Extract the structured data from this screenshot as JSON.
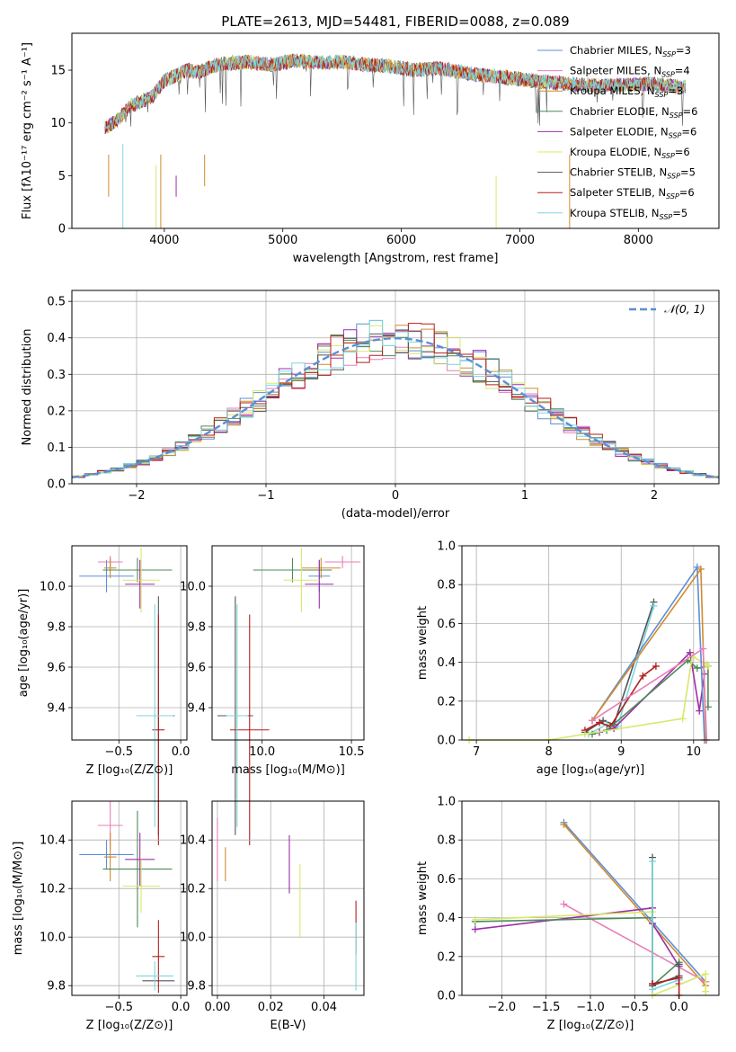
{
  "chart_data": [
    {
      "type": "line",
      "title": "PLATE=2613, MJD=54481, FIBERID=0088, z=0.089",
      "xlabel": "wavelength [Angstrom, rest frame]",
      "ylabel": "Flux [fλ10⁻¹⁷ erg cm⁻² s⁻¹ A⁻¹]",
      "xlim": [
        3220,
        8680
      ],
      "ylim": [
        0,
        18.5
      ],
      "xticks": [
        4000,
        5000,
        6000,
        7000,
        8000
      ],
      "yticks": [
        0,
        5,
        10,
        15
      ],
      "legend_position": "upper right",
      "spectrum_envelope": {
        "x": [
          3500,
          3600,
          3700,
          3800,
          3900,
          4000,
          4100,
          4200,
          4300,
          4400,
          4500,
          4700,
          4900,
          5100,
          5300,
          5500,
          5700,
          5900,
          6100,
          6300,
          6500,
          6700,
          6900,
          7100,
          7300,
          7500,
          7700,
          7900,
          8100,
          8300,
          8400
        ],
        "y": [
          9.5,
          10.2,
          11.5,
          12.0,
          12.5,
          14.0,
          14.5,
          15.0,
          14.8,
          15.4,
          15.6,
          15.8,
          15.5,
          15.9,
          15.7,
          15.8,
          15.5,
          15.4,
          15.0,
          15.2,
          14.8,
          14.5,
          14.3,
          14.0,
          13.8,
          13.6,
          13.5,
          13.6,
          13.7,
          13.5,
          13.4
        ]
      },
      "series": [
        {
          "name": "Chabrier MILES, N_SSP=3",
          "color": "#5b8fd6"
        },
        {
          "name": "Salpeter MILES, N_SSP=4",
          "color": "#e87eb8"
        },
        {
          "name": "Kroupa MILES, N_SSP=3",
          "color": "#d38a2c"
        },
        {
          "name": "Chabrier ELODIE, N_SSP=6",
          "color": "#4f8a56"
        },
        {
          "name": "Salpeter ELODIE, N_SSP=6",
          "color": "#9c2fa8"
        },
        {
          "name": "Kroupa ELODIE, N_SSP=6",
          "color": "#d8e86a"
        },
        {
          "name": "Chabrier STELIB, N_SSP=5",
          "color": "#555555"
        },
        {
          "name": "Salpeter STELIB, N_SSP=6",
          "color": "#b21e1e"
        },
        {
          "name": "Kroupa STELIB, N_SSP=5",
          "color": "#7dd6df"
        }
      ]
    },
    {
      "type": "histogram",
      "xlabel": "(data-model)/error",
      "ylabel": "Normed distribution",
      "xlim": [
        -2.5,
        2.5
      ],
      "ylim": [
        0,
        0.53
      ],
      "xticks": [
        -2,
        -1,
        0,
        1,
        2
      ],
      "yticks": [
        0.0,
        0.1,
        0.2,
        0.3,
        0.4,
        0.5
      ],
      "grid": true,
      "legend_position": "upper right",
      "reference_curve": {
        "name": "𝒩(0, 1)",
        "color": "#5b8fd6"
      },
      "bin_width": 0.1,
      "bin_start": -2.5,
      "series_colors": [
        "#5b8fd6",
        "#e87eb8",
        "#d38a2c",
        "#4f8a56",
        "#9c2fa8",
        "#d8e86a",
        "#555555",
        "#b21e1e",
        "#7dd6df"
      ]
    },
    {
      "type": "scatter",
      "xlabel": "Z [log₁₀(Z/Z⊙)]",
      "ylabel": "age  [log₁₀(age/yr)]",
      "xlim": [
        -0.88,
        0.05
      ],
      "ylim": [
        9.24,
        10.2
      ],
      "xticks": [
        -0.5,
        0.0
      ],
      "yticks": [
        9.4,
        9.6,
        9.8,
        10.0
      ],
      "points": [
        {
          "color": "#5b8fd6",
          "x": -0.6,
          "xerr": 0.22,
          "y": 10.05,
          "yerr": 0.08
        },
        {
          "color": "#e87eb8",
          "x": -0.57,
          "xerr": 0.1,
          "y": 10.12,
          "yerr": 0.03
        },
        {
          "color": "#d38a2c",
          "x": -0.57,
          "xerr": 0.05,
          "y": 10.09,
          "yerr": 0.05
        },
        {
          "color": "#4f8a56",
          "x": -0.35,
          "xerr": 0.28,
          "y": 10.08,
          "yerr": 0.06
        },
        {
          "color": "#9c2fa8",
          "x": -0.33,
          "xerr": 0.12,
          "y": 10.01,
          "yerr": 0.12
        },
        {
          "color": "#d8e86a",
          "x": -0.32,
          "xerr": 0.15,
          "y": 10.03,
          "yerr": 0.16
        },
        {
          "color": "#555555",
          "x": -0.18,
          "xerr": 0.13,
          "y": 9.36,
          "yerr": 0.59
        },
        {
          "color": "#b21e1e",
          "x": -0.18,
          "xerr": 0.05,
          "y": 9.29,
          "yerr": 0.57
        },
        {
          "color": "#7dd6df",
          "x": -0.21,
          "xerr": 0.15,
          "y": 9.36,
          "yerr": 0.55
        }
      ]
    },
    {
      "type": "scatter",
      "xlabel": "mass [log₁₀(M/M⊙)]",
      "xlim": [
        9.72,
        10.57
      ],
      "ylim": [
        9.24,
        10.2
      ],
      "xticks": [
        10.0,
        10.5
      ],
      "yticks": [
        9.4,
        9.6,
        9.8,
        10.0
      ],
      "points": [
        {
          "color": "#5b8fd6",
          "x": 10.32,
          "xerr": 0.06,
          "y": 10.05,
          "yerr": 0.08
        },
        {
          "color": "#e87eb8",
          "x": 10.45,
          "xerr": 0.1,
          "y": 10.12,
          "yerr": 0.03
        },
        {
          "color": "#d38a2c",
          "x": 10.33,
          "xerr": 0.11,
          "y": 10.09,
          "yerr": 0.05
        },
        {
          "color": "#4f8a56",
          "x": 10.17,
          "xerr": 0.22,
          "y": 10.08,
          "yerr": 0.06
        },
        {
          "color": "#9c2fa8",
          "x": 10.32,
          "xerr": 0.08,
          "y": 10.01,
          "yerr": 0.12
        },
        {
          "color": "#d8e86a",
          "x": 10.22,
          "xerr": 0.1,
          "y": 10.03,
          "yerr": 0.16
        },
        {
          "color": "#555555",
          "x": 9.85,
          "xerr": 0.1,
          "y": 9.36,
          "yerr": 0.59
        },
        {
          "color": "#b21e1e",
          "x": 9.93,
          "xerr": 0.11,
          "y": 9.29,
          "yerr": 0.57
        },
        {
          "color": "#7dd6df",
          "x": 9.86,
          "xerr": 0.06,
          "y": 9.36,
          "yerr": 0.55
        }
      ]
    },
    {
      "type": "line",
      "xlabel": "age  [log₁₀(age/yr)]",
      "ylabel": "mass weight",
      "xlim": [
        6.8,
        10.35
      ],
      "ylim": [
        0,
        1.0
      ],
      "xticks": [
        7,
        8,
        9,
        10
      ],
      "yticks": [
        0.0,
        0.2,
        0.4,
        0.6,
        0.8,
        1.0
      ],
      "series": [
        {
          "color": "#555555",
          "x": [
            8.5,
            8.75,
            8.9,
            9.45
          ],
          "y": [
            0.04,
            0.1,
            0.08,
            0.71
          ]
        },
        {
          "color": "#7dd6df",
          "x": [
            8.55,
            8.8,
            8.95,
            9.45
          ],
          "y": [
            0.03,
            0.08,
            0.07,
            0.69
          ]
        },
        {
          "color": "#b21e1e",
          "x": [
            8.5,
            8.7,
            8.85,
            9.3,
            9.48
          ],
          "y": [
            0.05,
            0.09,
            0.07,
            0.33,
            0.38
          ]
        },
        {
          "color": "#9c2fa8",
          "x": [
            8.7,
            8.9,
            9.95,
            10.08,
            10.15
          ],
          "y": [
            0.04,
            0.06,
            0.45,
            0.15,
            0.34
          ]
        },
        {
          "color": "#4f8a56",
          "x": [
            8.6,
            8.8,
            9.92,
            10.05,
            10.2,
            10.2
          ],
          "y": [
            0.03,
            0.05,
            0.41,
            0.37,
            0.38,
            0.17
          ]
        },
        {
          "color": "#d8e86a",
          "x": [
            6.9,
            8.0,
            8.5,
            9.85,
            9.98,
            10.18,
            10.2
          ],
          "y": [
            0.0,
            0.0,
            0.03,
            0.11,
            0.43,
            0.39,
            0.38
          ]
        },
        {
          "color": "#5b8fd6",
          "x": [
            8.6,
            10.05,
            10.15
          ],
          "y": [
            0.1,
            0.89,
            0.0
          ]
        },
        {
          "color": "#d38a2c",
          "x": [
            8.6,
            10.1,
            10.17
          ],
          "y": [
            0.1,
            0.88,
            0.0
          ]
        },
        {
          "color": "#e87eb8",
          "x": [
            8.6,
            10.13,
            10.18
          ],
          "y": [
            0.1,
            0.47,
            0.0
          ]
        }
      ]
    },
    {
      "type": "scatter",
      "xlabel": "Z [log₁₀(Z/Z⊙)]",
      "ylabel": "mass [log₁₀(M/M⊙)]",
      "xlim": [
        -0.88,
        0.05
      ],
      "ylim": [
        9.76,
        10.56
      ],
      "xticks": [
        -0.5,
        0.0
      ],
      "yticks": [
        9.8,
        10.0,
        10.2,
        10.4
      ],
      "points": [
        {
          "color": "#5b8fd6",
          "x": -0.6,
          "xerr": 0.22,
          "y": 10.34,
          "yerr": 0.06
        },
        {
          "color": "#e87eb8",
          "x": -0.57,
          "xerr": 0.1,
          "y": 10.46,
          "yerr": 0.1
        },
        {
          "color": "#d38a2c",
          "x": -0.57,
          "xerr": 0.05,
          "y": 10.33,
          "yerr": 0.1
        },
        {
          "color": "#4f8a56",
          "x": -0.35,
          "xerr": 0.28,
          "y": 10.28,
          "yerr": 0.24
        },
        {
          "color": "#9c2fa8",
          "x": -0.33,
          "xerr": 0.12,
          "y": 10.32,
          "yerr": 0.11
        },
        {
          "color": "#d8e86a",
          "x": -0.32,
          "xerr": 0.15,
          "y": 10.21,
          "yerr": 0.11
        },
        {
          "color": "#555555",
          "x": -0.18,
          "xerr": 0.13,
          "y": 9.82,
          "yerr": 0.0
        },
        {
          "color": "#b21e1e",
          "x": -0.18,
          "xerr": 0.05,
          "y": 9.92,
          "yerr": 0.15
        },
        {
          "color": "#7dd6df",
          "x": -0.21,
          "xerr": 0.15,
          "y": 9.84,
          "yerr": 0.06
        }
      ]
    },
    {
      "type": "scatter",
      "xlabel": "E(B-V)",
      "xlim": [
        -0.002,
        0.055
      ],
      "ylim": [
        9.76,
        10.56
      ],
      "xticks": [
        0.0,
        0.02,
        0.04
      ],
      "yticks": [
        9.8,
        10.0,
        10.2,
        10.4
      ],
      "points": [
        {
          "color": "#e87eb8",
          "x": 0.0,
          "y": 10.36,
          "yerr": 0.13
        },
        {
          "color": "#d38a2c",
          "x": 0.003,
          "y": 10.3,
          "yerr": 0.07
        },
        {
          "color": "#9c2fa8",
          "x": 0.027,
          "y": 10.3,
          "yerr": 0.12
        },
        {
          "color": "#d8e86a",
          "x": 0.031,
          "y": 10.15,
          "yerr": 0.15
        },
        {
          "color": "#b21e1e",
          "x": 0.052,
          "y": 10.04,
          "yerr": 0.11
        },
        {
          "color": "#7dd6df",
          "x": 0.052,
          "y": 9.92,
          "yerr": 0.14
        }
      ]
    },
    {
      "type": "line",
      "xlabel": "Z [log₁₀(Z/Z⊙)]",
      "ylabel": "mass weight",
      "xlim": [
        -2.45,
        0.45
      ],
      "ylim": [
        0,
        1.0
      ],
      "xticks": [
        -2.0,
        -1.5,
        -1.0,
        -0.5,
        0.0
      ],
      "yticks": [
        0.0,
        0.2,
        0.4,
        0.6,
        0.8,
        1.0
      ],
      "series": [
        {
          "color": "#5b8fd6",
          "x": [
            -1.3,
            0.3
          ],
          "y": [
            0.89,
            0.07
          ]
        },
        {
          "color": "#d38a2c",
          "x": [
            -1.3,
            0.3
          ],
          "y": [
            0.88,
            0.05
          ]
        },
        {
          "color": "#e87eb8",
          "x": [
            -1.3,
            0.3
          ],
          "y": [
            0.47,
            0.07
          ]
        },
        {
          "color": "#9c2fa8",
          "x": [
            -2.3,
            -0.3,
            -0.3,
            0.0,
            0.0
          ],
          "y": [
            0.34,
            0.45,
            0.37,
            0.15,
            0.06
          ]
        },
        {
          "color": "#4f8a56",
          "x": [
            -2.3,
            -0.3,
            -0.3,
            0.0
          ],
          "y": [
            0.38,
            0.4,
            0.05,
            0.17
          ]
        },
        {
          "color": "#d8e86a",
          "x": [
            -2.3,
            -0.3,
            -0.3,
            0.3,
            0.3
          ],
          "y": [
            0.39,
            0.43,
            0.0,
            0.11,
            0.02
          ]
        },
        {
          "color": "#555555",
          "x": [
            -0.3,
            -0.3,
            0.0,
            0.0
          ],
          "y": [
            0.71,
            0.05,
            0.1,
            0.16
          ]
        },
        {
          "color": "#7dd6df",
          "x": [
            -0.3,
            -0.3,
            0.0
          ],
          "y": [
            0.69,
            0.03,
            0.08
          ]
        },
        {
          "color": "#b21e1e",
          "x": [
            -0.3,
            0.0,
            0.0
          ],
          "y": [
            0.06,
            0.09,
            0.0
          ]
        }
      ]
    }
  ]
}
